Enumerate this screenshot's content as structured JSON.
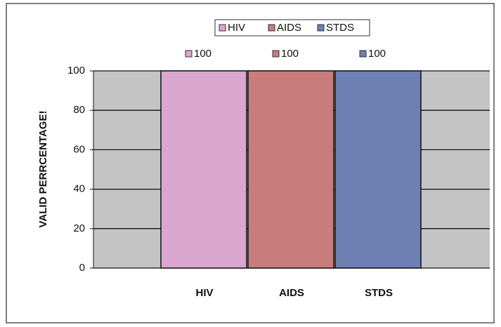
{
  "chart_data": {
    "type": "bar",
    "ylabel": "VALID PERRCENTAGE!",
    "categories": [
      "HIV",
      "AIDS",
      "STDS"
    ],
    "values": [
      100,
      100,
      100
    ],
    "colors": [
      "#d9a6d0",
      "#c97c7c",
      "#6e7fb3"
    ],
    "ylim": [
      0,
      100
    ],
    "yticks": [
      0,
      20,
      40,
      60,
      80,
      100
    ],
    "grid": true,
    "legend": "top"
  }
}
